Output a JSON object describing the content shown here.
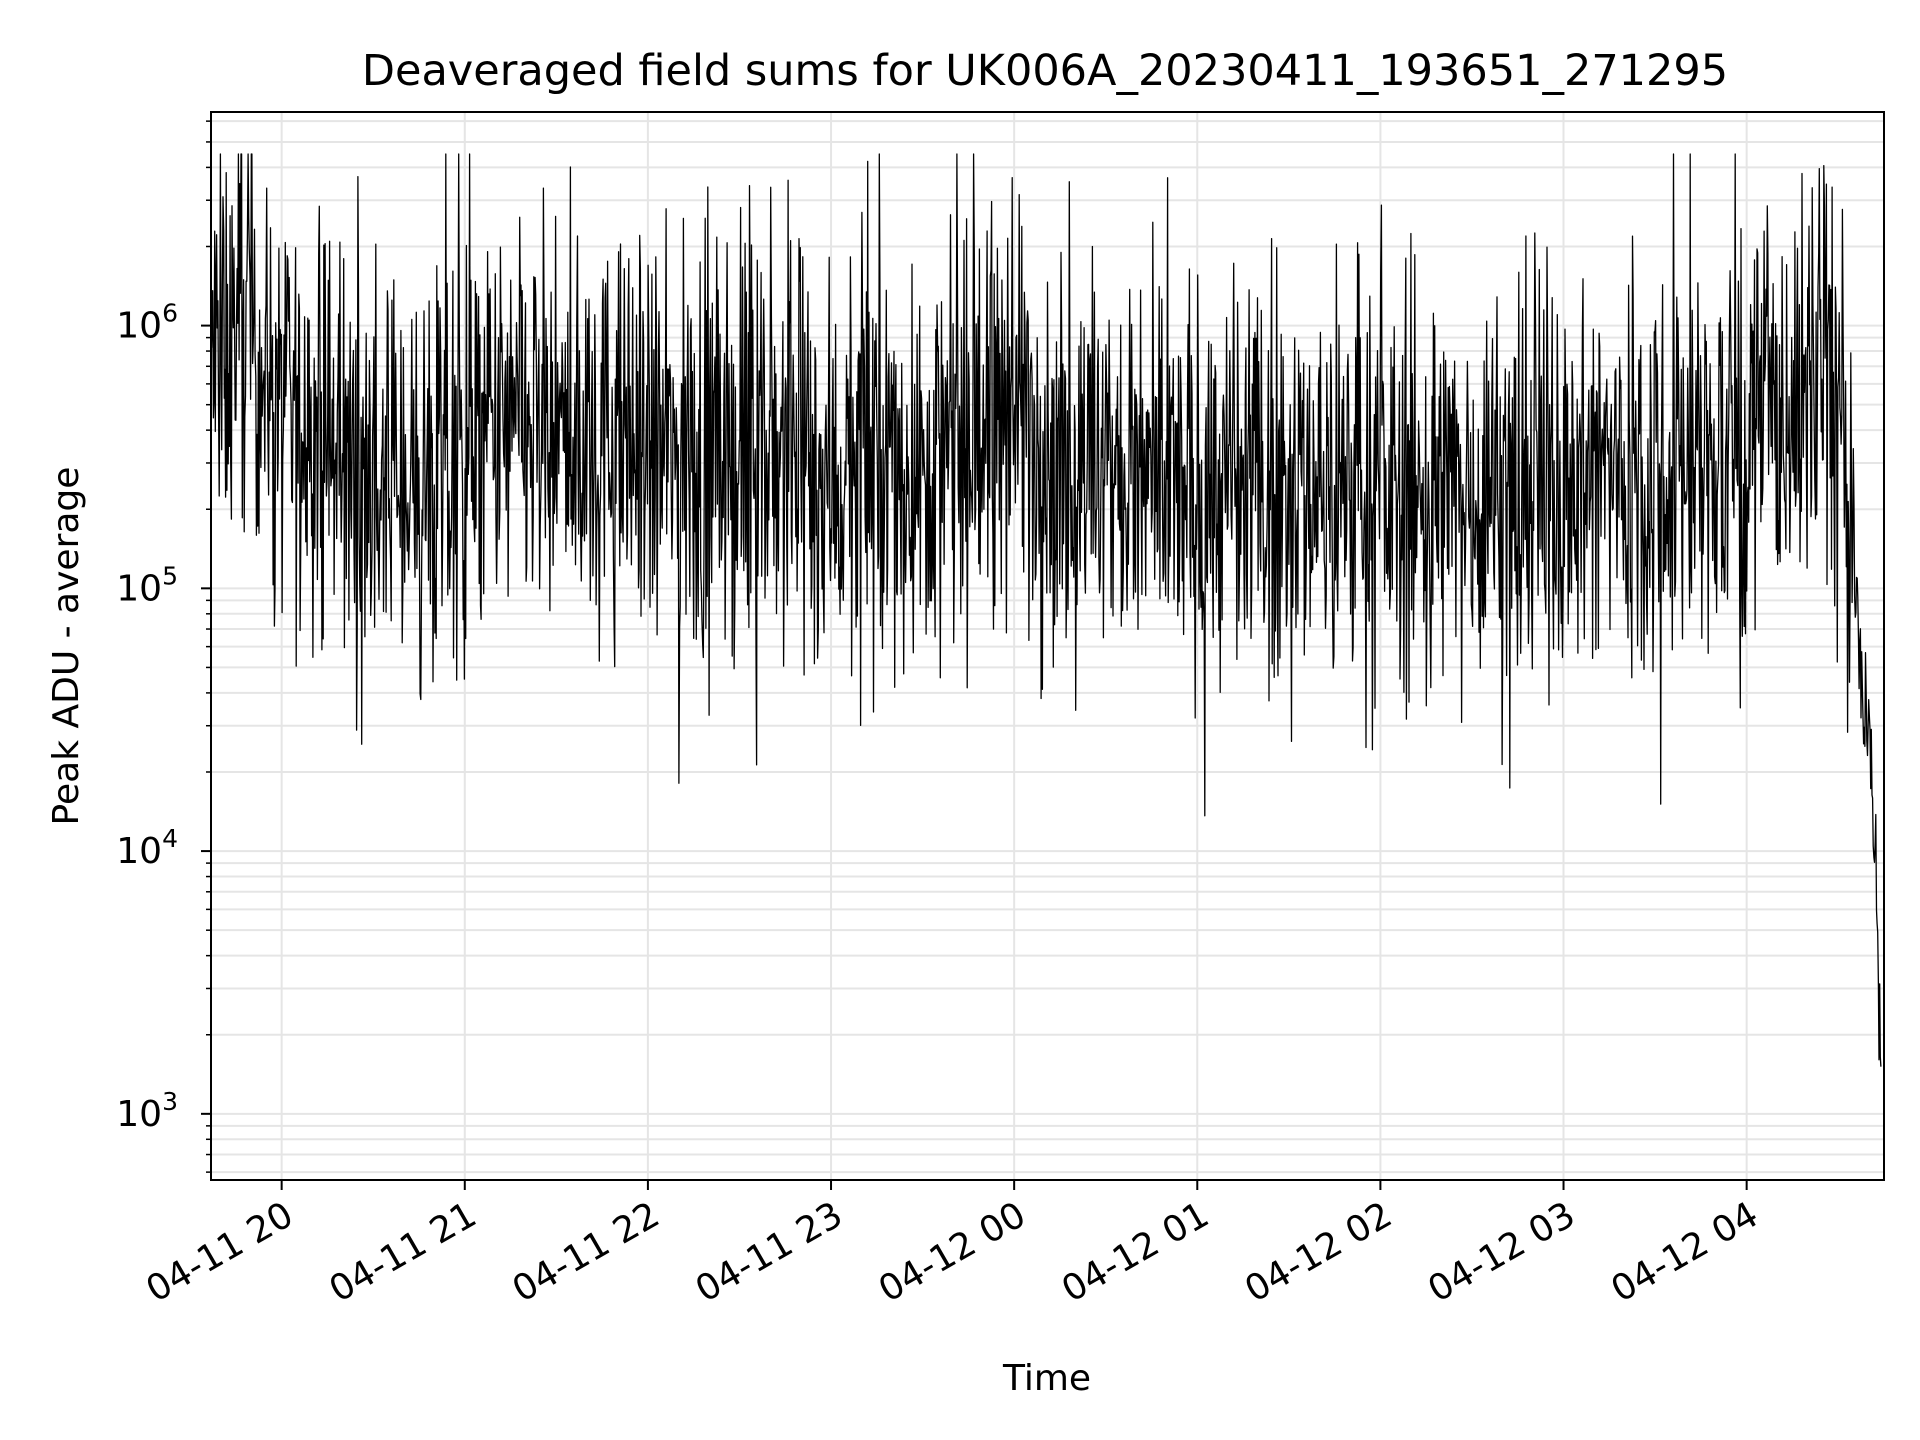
{
  "chart_data": {
    "type": "line",
    "title": "Deaveraged field sums for UK006A_20230411_193651_271295",
    "xlabel": "Time",
    "ylabel": "Peak ADU - average",
    "yscale": "log",
    "ylim": [
      560,
      6500000
    ],
    "xlim": [
      "2023-04-11 19:36:51",
      "2023-04-12 04:45:00"
    ],
    "x_ticks": [
      "04-11 20",
      "04-11 21",
      "04-11 22",
      "04-11 23",
      "04-12 00",
      "04-12 01",
      "04-12 02",
      "04-12 03",
      "04-12 04"
    ],
    "x_tick_times": [
      "2023-04-11 20:00",
      "2023-04-11 21:00",
      "2023-04-11 22:00",
      "2023-04-11 23:00",
      "2023-04-12 00:00",
      "2023-04-12 01:00",
      "2023-04-12 02:00",
      "2023-04-12 03:00",
      "2023-04-12 04:00"
    ],
    "y_ticks": [
      {
        "value": 1000,
        "base": "10",
        "exp": "3"
      },
      {
        "value": 10000,
        "base": "10",
        "exp": "4"
      },
      {
        "value": 100000,
        "base": "10",
        "exp": "5"
      },
      {
        "value": 1000000,
        "base": "10",
        "exp": "6"
      }
    ],
    "grid": true,
    "line_color": "#000000",
    "grid_color": "#e5e5e5",
    "series": [
      {
        "x": [
          "2023-04-11 19:37",
          "2023-04-11 19:45",
          "2023-04-11 19:50",
          "2023-04-11 19:55",
          "2023-04-11 20:00",
          "2023-04-11 20:10",
          "2023-04-11 20:20",
          "2023-04-11 20:30",
          "2023-04-11 20:40",
          "2023-04-11 20:50",
          "2023-04-11 21:00",
          "2023-04-11 21:15",
          "2023-04-11 21:30",
          "2023-04-11 21:45",
          "2023-04-11 22:00",
          "2023-04-11 22:15",
          "2023-04-11 22:30",
          "2023-04-11 22:45",
          "2023-04-11 23:00",
          "2023-04-11 23:15",
          "2023-04-11 23:30",
          "2023-04-11 23:45",
          "2023-04-12 00:00",
          "2023-04-12 00:15",
          "2023-04-12 00:30",
          "2023-04-12 00:45",
          "2023-04-12 01:00",
          "2023-04-12 01:15",
          "2023-04-12 01:30",
          "2023-04-12 01:45",
          "2023-04-12 02:00",
          "2023-04-12 02:15",
          "2023-04-12 02:30",
          "2023-04-12 02:45",
          "2023-04-12 03:00",
          "2023-04-12 03:15",
          "2023-04-12 03:30",
          "2023-04-12 03:45",
          "2023-04-12 04:00",
          "2023-04-12 04:10",
          "2023-04-12 04:20",
          "2023-04-12 04:27",
          "2023-04-12 04:32",
          "2023-04-12 04:37",
          "2023-04-12 04:41",
          "2023-04-12 04:44"
        ],
        "values": [
          700000,
          900000,
          1100000,
          650000,
          450000,
          380000,
          300000,
          250000,
          260000,
          220000,
          300000,
          400000,
          350000,
          360000,
          330000,
          300000,
          320000,
          330000,
          260000,
          280000,
          300000,
          320000,
          550000,
          290000,
          260000,
          240000,
          220000,
          230000,
          260000,
          250000,
          230000,
          210000,
          240000,
          250000,
          260000,
          280000,
          290000,
          300000,
          350000,
          450000,
          550000,
          900000,
          300000,
          60000,
          20000,
          1800
        ]
      }
    ]
  }
}
